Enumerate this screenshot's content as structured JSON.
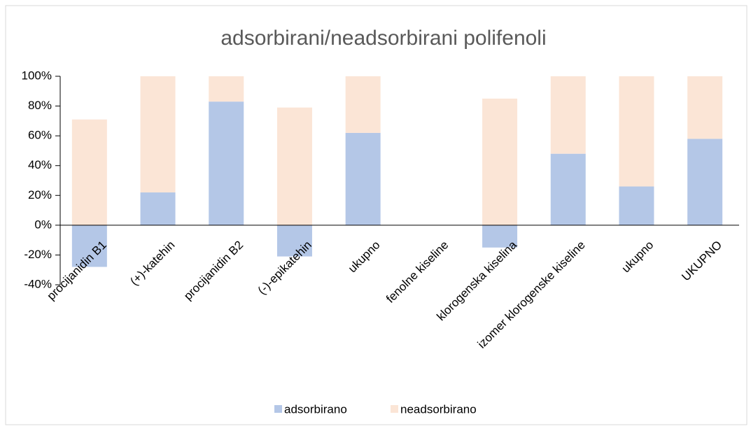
{
  "chart_data": {
    "type": "stacked-bar",
    "title": "adsorbirani/neadsorbirani polifenoli",
    "categories": [
      "procijanidin B1",
      "(+)-katehin",
      "procijanidin B2",
      "(-)-epikatehin",
      "ukupno",
      "fenolne kiseline",
      "klorogenska kiselina",
      "izomer klorogenske kiseline",
      "ukupno",
      "UKUPNO"
    ],
    "series": [
      {
        "name": "adsorbirano",
        "color": "#b4c7e7",
        "values": [
          -28,
          22,
          83,
          -21,
          62,
          null,
          -15,
          48,
          26,
          58
        ]
      },
      {
        "name": "neadsorbirano",
        "color": "#fbe5d6",
        "values": [
          71,
          78,
          17,
          79,
          38,
          null,
          85,
          52,
          74,
          42
        ]
      }
    ],
    "ylim": [
      -40,
      100
    ],
    "yticks": [
      {
        "value": -40,
        "label": "-40%"
      },
      {
        "value": -20,
        "label": "-20%"
      },
      {
        "value": 0,
        "label": "0%"
      },
      {
        "value": 20,
        "label": "20%"
      },
      {
        "value": 40,
        "label": "40%"
      },
      {
        "value": 60,
        "label": "60%"
      },
      {
        "value": 80,
        "label": "80%"
      },
      {
        "value": 100,
        "label": "100%"
      }
    ],
    "legend": "bottom"
  }
}
